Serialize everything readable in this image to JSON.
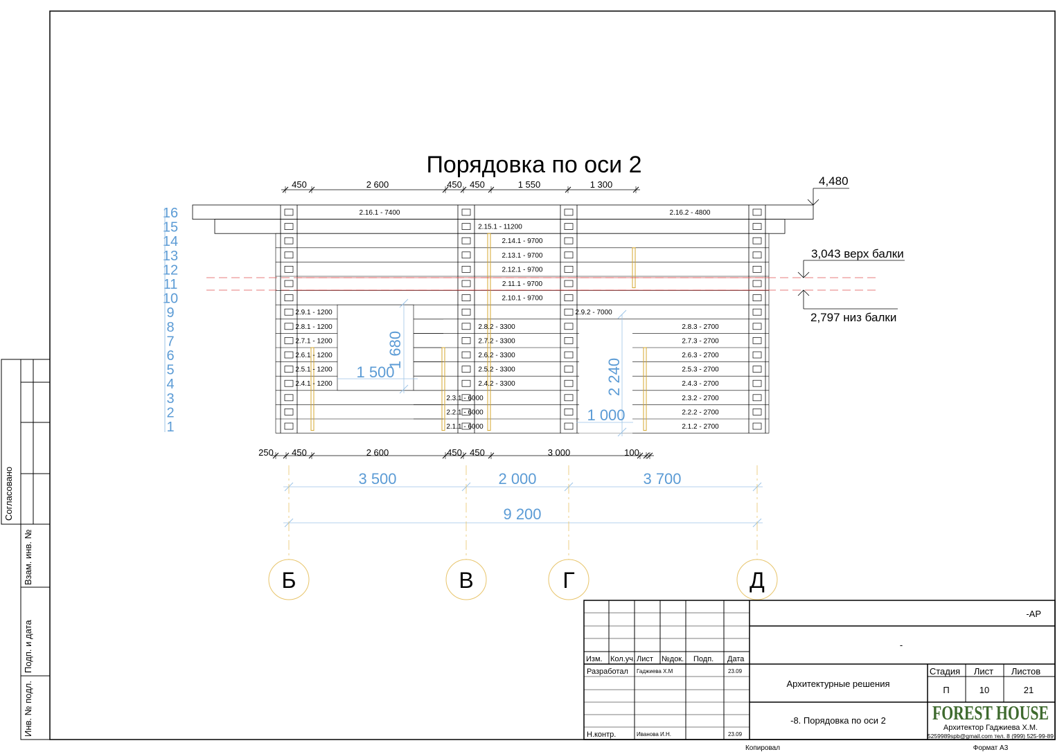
{
  "title": "Порядовка по оси 2",
  "top_dims": [
    "450",
    "2 600",
    "450",
    "450",
    "1 550",
    "1 300"
  ],
  "bottom_dims": [
    "250",
    "450",
    "2 600",
    "450",
    "450",
    "3 000",
    "100"
  ],
  "axis_dims": [
    "3 500",
    "2 000",
    "3 700"
  ],
  "total_dim": "9 200",
  "axes": [
    "Б",
    "В",
    "Г",
    "Д"
  ],
  "rows": [
    "16",
    "15",
    "14",
    "13",
    "12",
    "11",
    "10",
    "9",
    "8",
    "7",
    "6",
    "5",
    "4",
    "3",
    "2",
    "1"
  ],
  "levels": {
    "top": "4,480",
    "beam_top": "3,043 верх балки",
    "beam_bottom": "2,797 низ балки"
  },
  "opening_dims": {
    "window_h": "1 680",
    "window_w": "1 500",
    "door_h": "2 240",
    "door_w": "1 000"
  },
  "logs": {
    "full": [
      "2.16.1 - 7400",
      "2.16.2 - 4800",
      "2.15.1 - 11200",
      "2.14.1 - 9700",
      "2.13.1 - 9700",
      "2.12.1 - 9700",
      "2.11.1 - 9700",
      "2.10.1 - 9700",
      "2.9.2 - 7000"
    ],
    "left": [
      "2.9.1 - 1200",
      "2.8.1 - 1200",
      "2.7.1 - 1200",
      "2.6.1 - 1200",
      "2.5.1 - 1200",
      "2.4.1 - 1200"
    ],
    "middle": [
      "2.8.2 - 3300",
      "2.7.2 - 3300",
      "2.6.2 - 3300",
      "2.5.2 - 3300",
      "2.4.2 - 3300"
    ],
    "lower": [
      "2.3.1 - 6000",
      "2.2.1 - 6000",
      "2.1.1 - 6000"
    ],
    "right": [
      "2.8.3 - 2700",
      "2.7.3 - 2700",
      "2.6.3 - 2700",
      "2.5.3 - 2700",
      "2.4.3 - 2700",
      "2.3.2 - 2700",
      "2.2.2 - 2700",
      "2.1.2 - 2700"
    ]
  },
  "side_stamp": {
    "agreed": "Согласовано",
    "vzam": "Взам. инв. №",
    "podp": "Подп. и дата",
    "inv": "Инв. № подл."
  },
  "title_block": {
    "code": "-АР",
    "dash": "-",
    "headers": [
      "Изм.",
      "Кол.уч.",
      "Лист",
      "№док.",
      "Подп.",
      "Дата"
    ],
    "developed_label": "Разработал",
    "developed_name": "Гаджиева Х.М",
    "developed_date": "23.09",
    "control_label": "Н.контр.",
    "control_name": "Иванова И.Н.",
    "control_date": "23.09",
    "section": "Архитектурные решения",
    "sheet_title": "-8. Порядовка по оси 2",
    "stage_label": "Стадия",
    "sheet_label": "Лист",
    "sheets_label": "Листов",
    "stage": "П",
    "sheet": "10",
    "sheets": "21",
    "brand": "FOREST HOUSE",
    "architect": "Архитектор Гаджиева Х.М.",
    "contact": "5259989spb@gmail.com тел. 8 (999) 525-99-89",
    "copied": "Копировал",
    "format": "Формат А3"
  }
}
